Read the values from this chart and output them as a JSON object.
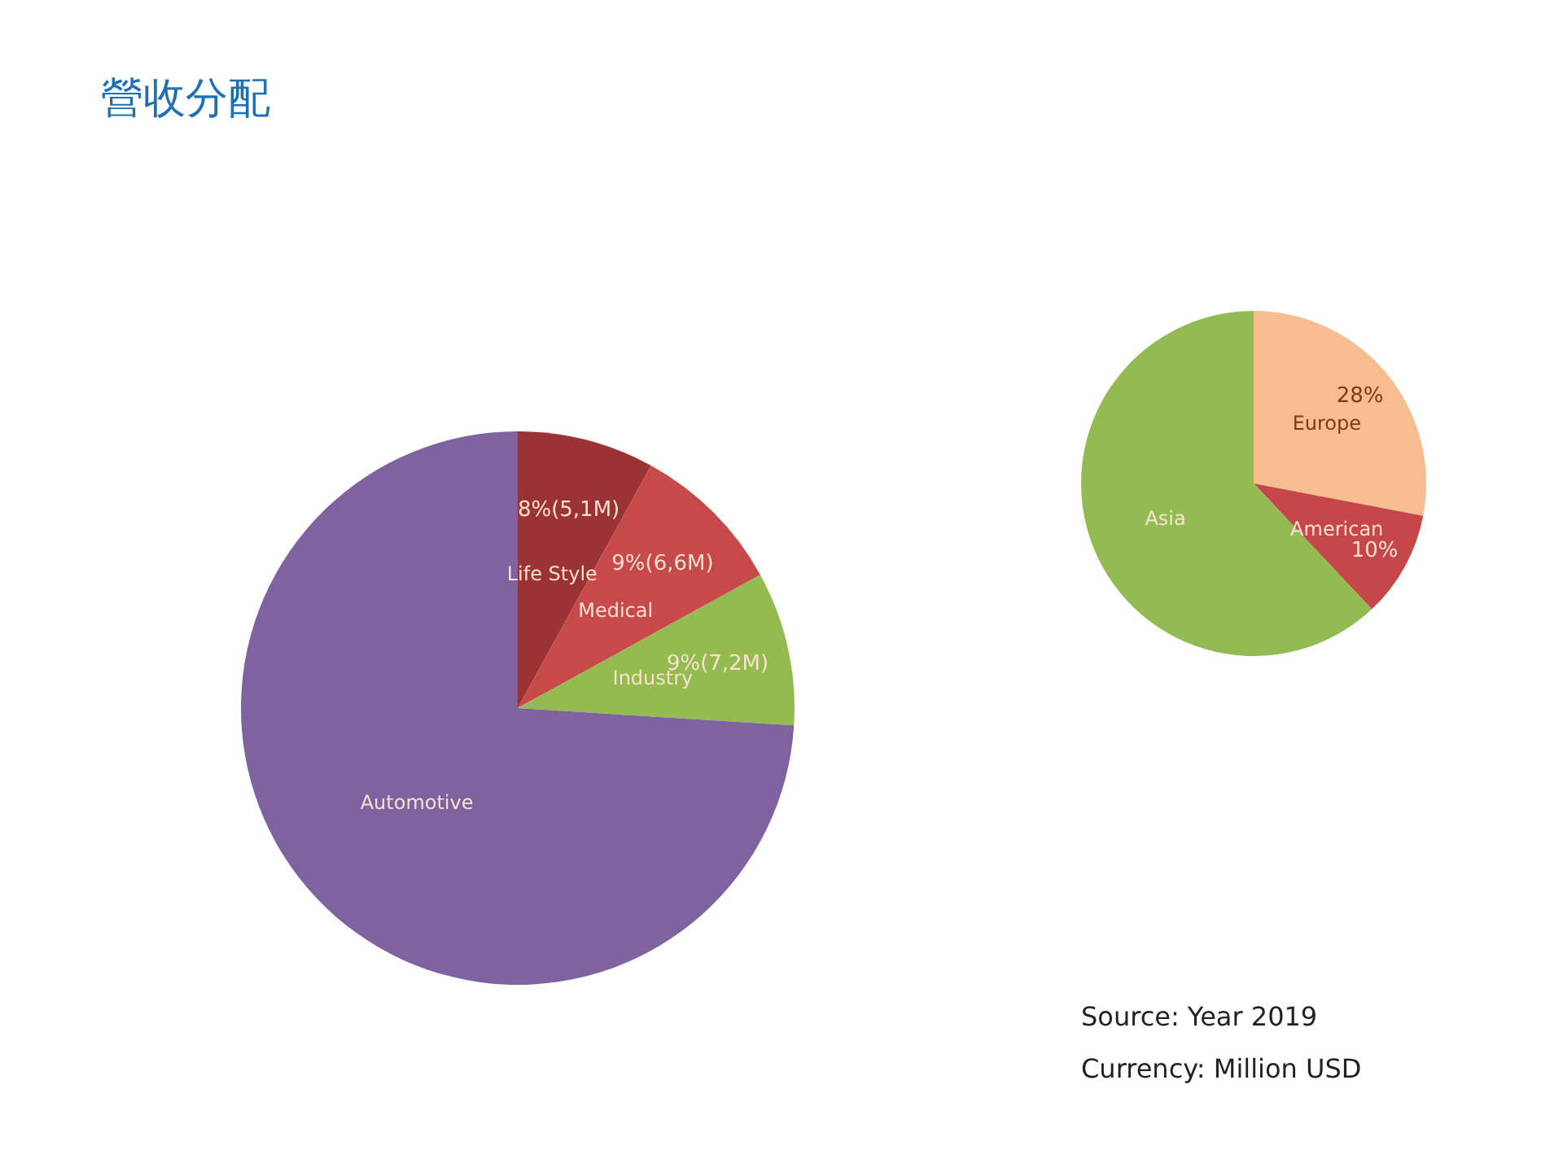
{
  "chart_data": [
    {
      "type": "pie",
      "title": "營收分配",
      "categories": [
        "Life Style",
        "Medical",
        "Industry",
        "Automotive"
      ],
      "values": [
        8,
        9,
        9,
        74
      ],
      "colors": [
        "#9b3334",
        "#c8494a",
        "#94bb4f",
        "#7f62a0"
      ],
      "value_labels": [
        "8%(5,1M)",
        "9%(6,6M)",
        "9%(7,2M)",
        null
      ],
      "legend": false
    },
    {
      "type": "pie",
      "categories": [
        "Europe",
        "American",
        "Asia"
      ],
      "values": [
        28,
        10,
        62
      ],
      "colors": [
        "#f7bd8f",
        "#c6474a",
        "#93bb53"
      ],
      "value_labels": [
        "28%",
        "10%",
        null
      ],
      "legend": false,
      "annotations": [
        "Source: Year 2019",
        "Currency: Million USD"
      ]
    }
  ]
}
